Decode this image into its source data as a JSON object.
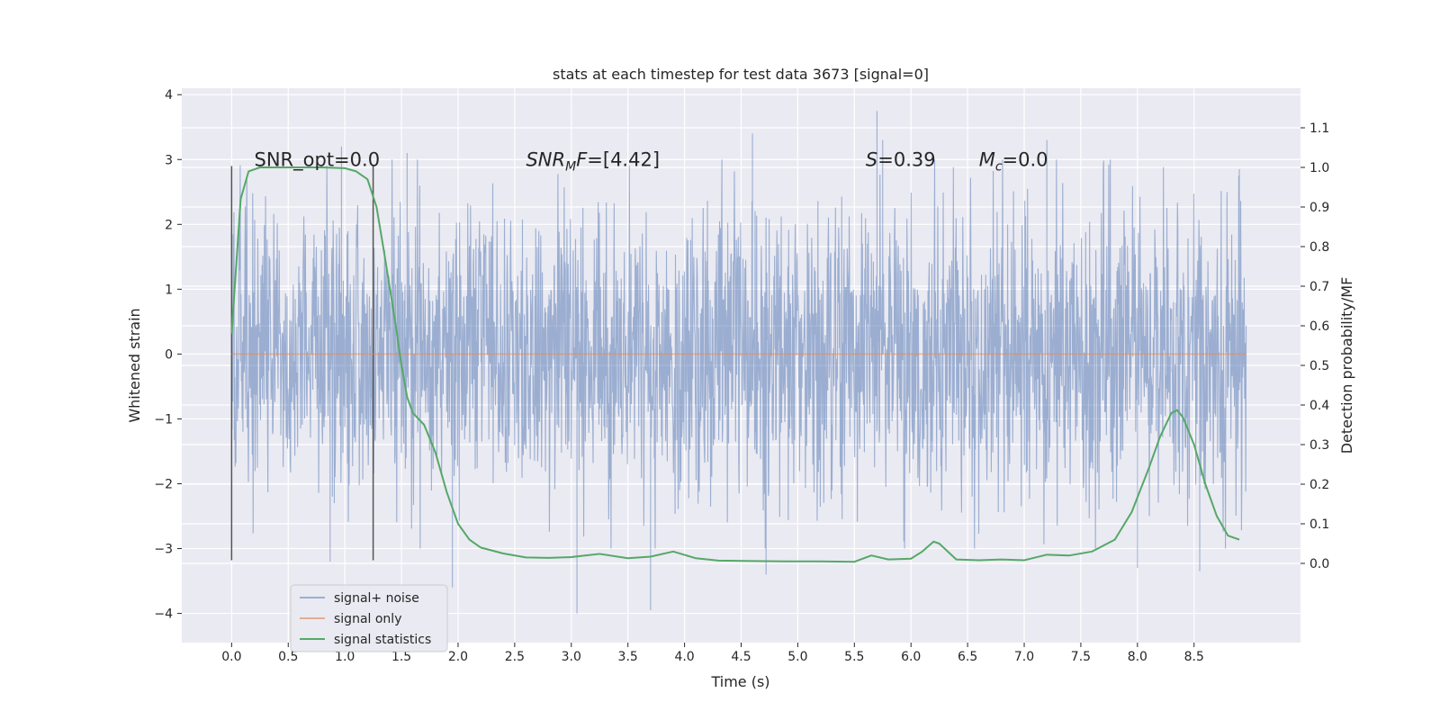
{
  "chart_data": {
    "type": "line",
    "title": "stats at each timestep for test data 3673 [signal=0]",
    "xlabel": "Time (s)",
    "ylabel": "Whitened strain",
    "y2label": "Detection probability/MF",
    "xlim": [
      -0.44,
      9.44
    ],
    "ylim": [
      -4.45,
      4.1
    ],
    "y2lim": [
      -0.2,
      1.2
    ],
    "xticks": [
      0.0,
      0.5,
      1.0,
      1.5,
      2.0,
      2.5,
      3.0,
      3.5,
      4.0,
      4.5,
      5.0,
      5.5,
      6.0,
      6.5,
      7.0,
      7.5,
      8.0,
      8.5
    ],
    "yticks": [
      -4,
      -3,
      -2,
      -1,
      0,
      1,
      2,
      3,
      4
    ],
    "y2ticks": [
      0.0,
      0.1,
      0.2,
      0.3,
      0.4,
      0.5,
      0.6,
      0.7,
      0.8,
      0.9,
      1.0,
      1.1
    ],
    "grid": true,
    "legend_position": "lower-left",
    "vertical_lines": [
      0.0,
      1.25
    ],
    "annotations": [
      {
        "parts": [
          {
            "text": "SNR_opt=0.0",
            "italic": false
          }
        ],
        "x": 0.2,
        "y": 3.0
      },
      {
        "parts": [
          {
            "text": "SNR",
            "italic": true
          },
          {
            "text": "M",
            "italic": true,
            "sub": true
          },
          {
            "text": "F",
            "italic": true
          },
          {
            "text": "=[4.42]",
            "italic": false
          }
        ],
        "x": 2.6,
        "y": 3.0
      },
      {
        "parts": [
          {
            "text": "S",
            "italic": true
          },
          {
            "text": "=0.39",
            "italic": false
          }
        ],
        "x": 5.6,
        "y": 3.0
      },
      {
        "parts": [
          {
            "text": "M",
            "italic": true
          },
          {
            "text": "c",
            "italic": true,
            "sub": true
          },
          {
            "text": "=0.0",
            "italic": false
          }
        ],
        "x": 6.6,
        "y": 3.0
      }
    ],
    "series": [
      {
        "name": "signal+ noise",
        "color": "#4c72b0",
        "alpha": 0.5,
        "axis": "left",
        "x_start": 0.0,
        "x_end": 8.96,
        "typical_amplitude": 1.1,
        "extreme_points": [
          {
            "x": 0.97,
            "y": 3.2
          },
          {
            "x": 0.87,
            "y": -3.2
          },
          {
            "x": 1.55,
            "y": 3.1
          },
          {
            "x": 1.95,
            "y": -3.6
          },
          {
            "x": 3.05,
            "y": -4.0
          },
          {
            "x": 3.7,
            "y": -3.95
          },
          {
            "x": 4.72,
            "y": -3.4
          },
          {
            "x": 5.7,
            "y": 3.75
          },
          {
            "x": 5.75,
            "y": 3.3
          },
          {
            "x": 4.6,
            "y": 3.4
          },
          {
            "x": 8.55,
            "y": -3.35
          },
          {
            "x": 8.9,
            "y": 2.85
          },
          {
            "x": 8.0,
            "y": -3.3
          },
          {
            "x": 7.2,
            "y": 3.3
          }
        ]
      },
      {
        "name": "signal only",
        "color": "#dd8452",
        "alpha": 0.6,
        "axis": "left",
        "x": [
          0.0,
          8.96
        ],
        "y": [
          0.0,
          0.0
        ]
      },
      {
        "name": "signal statistics",
        "color": "#55a868",
        "alpha": 1.0,
        "axis": "right",
        "x": [
          0.0,
          0.08,
          0.15,
          0.25,
          0.4,
          0.6,
          0.8,
          1.0,
          1.1,
          1.2,
          1.28,
          1.35,
          1.45,
          1.5,
          1.55,
          1.6,
          1.7,
          1.8,
          1.9,
          2.0,
          2.1,
          2.2,
          2.4,
          2.6,
          2.8,
          3.0,
          3.25,
          3.5,
          3.7,
          3.9,
          4.1,
          4.3,
          4.6,
          4.9,
          5.2,
          5.5,
          5.65,
          5.8,
          6.0,
          6.1,
          6.2,
          6.25,
          6.4,
          6.6,
          6.8,
          7.0,
          7.2,
          7.4,
          7.6,
          7.8,
          7.95,
          8.1,
          8.2,
          8.3,
          8.35,
          8.4,
          8.5,
          8.6,
          8.7,
          8.8,
          8.9
        ],
        "y": [
          0.58,
          0.92,
          0.99,
          1.0,
          1.0,
          1.0,
          1.0,
          0.998,
          0.99,
          0.97,
          0.9,
          0.78,
          0.6,
          0.5,
          0.42,
          0.38,
          0.35,
          0.28,
          0.18,
          0.1,
          0.06,
          0.04,
          0.025,
          0.015,
          0.014,
          0.016,
          0.024,
          0.013,
          0.017,
          0.03,
          0.013,
          0.007,
          0.006,
          0.005,
          0.005,
          0.004,
          0.02,
          0.01,
          0.012,
          0.03,
          0.055,
          0.05,
          0.01,
          0.008,
          0.01,
          0.008,
          0.022,
          0.02,
          0.03,
          0.06,
          0.13,
          0.24,
          0.32,
          0.38,
          0.387,
          0.37,
          0.3,
          0.2,
          0.12,
          0.07,
          0.06
        ]
      }
    ]
  }
}
